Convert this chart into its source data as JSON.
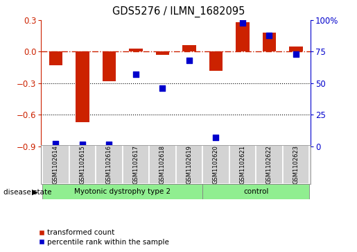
{
  "title": "GDS5276 / ILMN_1682095",
  "samples": [
    "GSM1102614",
    "GSM1102615",
    "GSM1102616",
    "GSM1102617",
    "GSM1102618",
    "GSM1102619",
    "GSM1102620",
    "GSM1102621",
    "GSM1102622",
    "GSM1102623"
  ],
  "red_values": [
    -0.13,
    -0.67,
    -0.28,
    0.03,
    -0.03,
    0.06,
    -0.18,
    0.28,
    0.18,
    0.05
  ],
  "blue_values": [
    2.0,
    1.5,
    1.5,
    57.0,
    46.0,
    68.0,
    7.0,
    98.0,
    88.0,
    73.0
  ],
  "left_ylim": [
    -0.9,
    0.3
  ],
  "right_ylim": [
    0,
    100
  ],
  "left_yticks": [
    -0.9,
    -0.6,
    -0.3,
    0.0,
    0.3
  ],
  "right_yticks": [
    0,
    25,
    50,
    75,
    100
  ],
  "right_yticklabels": [
    "0",
    "25",
    "50",
    "75",
    "100%"
  ],
  "hline_y": 0.0,
  "dotted_hlines": [
    -0.3,
    -0.6
  ],
  "group1_label": "Myotonic dystrophy type 2",
  "group2_label": "control",
  "group1_count": 6,
  "group2_count": 4,
  "disease_state_label": "disease state",
  "legend_red": "transformed count",
  "legend_blue": "percentile rank within the sample",
  "bar_color": "#cc2200",
  "dot_color": "#0000cc",
  "bg_color": "#d3d3d3",
  "group_color": "#90ee90",
  "bar_width": 0.5,
  "dot_size": 28
}
